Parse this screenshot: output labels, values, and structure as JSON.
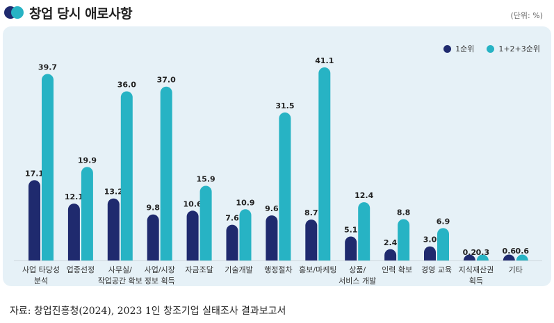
{
  "header": {
    "title": "창업 당시 애로사항",
    "unit": "(단위: %)"
  },
  "source": "자료: 창업진흥청(2024), 2023 1인 창조기업 실태조사 결과보고서",
  "colors": {
    "series1": "#1f2a6e",
    "series2": "#27b3c4",
    "panel": "#e6f1f7"
  },
  "chart_data": {
    "type": "bar",
    "categories": [
      [
        "사업 타당성",
        "분석"
      ],
      [
        "업종선정"
      ],
      [
        "사무실/",
        "작업공간 확보"
      ],
      [
        "사업/시장",
        "정보 획득"
      ],
      [
        "자금조달"
      ],
      [
        "기술개발"
      ],
      [
        "행정절차"
      ],
      [
        "홍보/마케팅"
      ],
      [
        "상품/",
        "서비스 개발"
      ],
      [
        "인력 확보"
      ],
      [
        "경영 교육"
      ],
      [
        "지식재산권",
        "획득"
      ],
      [
        "기타"
      ]
    ],
    "series": [
      {
        "name": "1순위",
        "color": "#1f2a6e",
        "values": [
          17.1,
          12.1,
          13.2,
          9.8,
          10.6,
          7.6,
          9.6,
          8.7,
          5.1,
          2.4,
          3.0,
          0.2,
          0.6
        ]
      },
      {
        "name": "1+2+3순위",
        "color": "#27b3c4",
        "values": [
          39.7,
          19.9,
          36.0,
          37.0,
          15.9,
          10.9,
          31.5,
          41.1,
          12.4,
          8.8,
          6.9,
          0.3,
          0.6
        ]
      }
    ],
    "ylim": [
      0,
      45
    ],
    "grid": false,
    "legend": "top-right"
  }
}
